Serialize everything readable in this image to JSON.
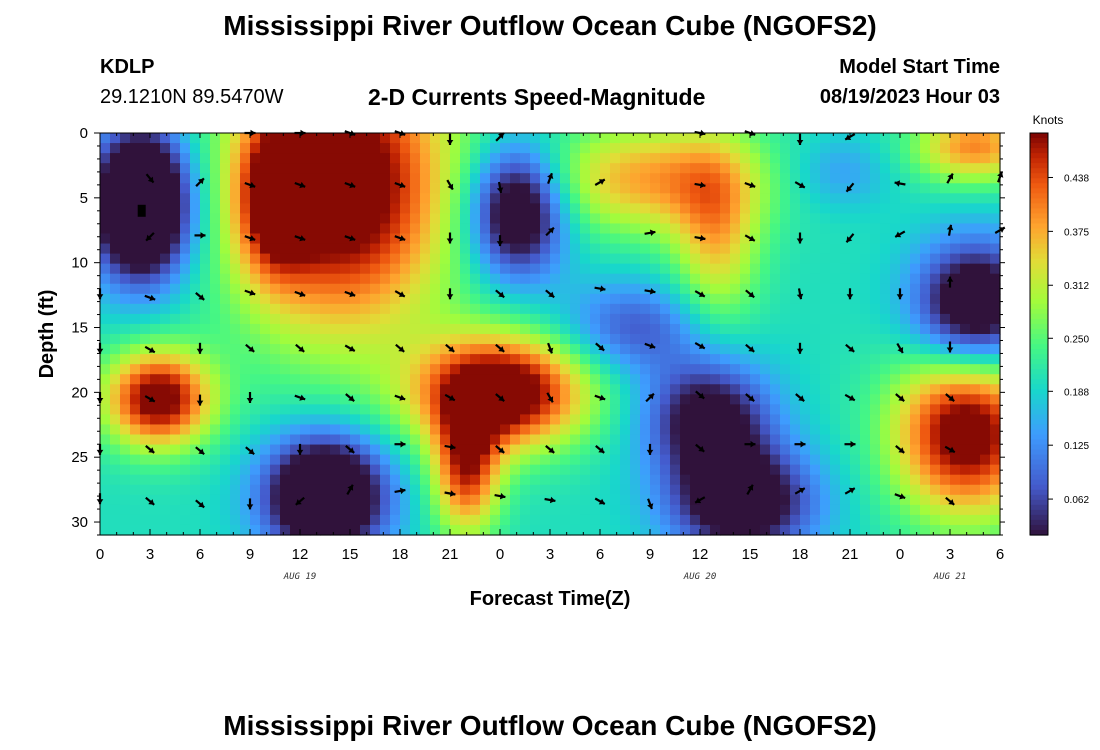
{
  "header": {
    "title": "Mississippi River Outflow Ocean Cube (NGOFS2)",
    "station": "KDLP",
    "coords": "29.1210N  89.5470W",
    "subtitle": "2-D Currents Speed-Magnitude",
    "model_label": "Model Start Time",
    "model_time": "08/19/2023 Hour 03"
  },
  "footer": {
    "title": "Mississippi River Outflow Ocean Cube (NGOFS2)"
  },
  "chart_data": {
    "type": "heatmap",
    "title": "2-D Currents Speed-Magnitude",
    "xlabel": "Forecast Time(Z)",
    "ylabel": "Depth (ft)",
    "x_range": [
      0,
      54
    ],
    "y_range": [
      0,
      31
    ],
    "x_tick_values": [
      0,
      3,
      6,
      9,
      12,
      15,
      18,
      21,
      24,
      27,
      30,
      33,
      36,
      39,
      42,
      45,
      48,
      51,
      54
    ],
    "x_tick_labels": [
      "0",
      "3",
      "6",
      "9",
      "12",
      "15",
      "18",
      "21",
      "0",
      "3",
      "6",
      "9",
      "12",
      "15",
      "18",
      "21",
      "0",
      "3",
      "6"
    ],
    "y_ticks": [
      0,
      5,
      10,
      15,
      20,
      25,
      30
    ],
    "date_labels": [
      {
        "label": "AUG 19",
        "hour": 12
      },
      {
        "label": "AUG 20",
        "hour": 36
      },
      {
        "label": "AUG 21",
        "hour": 51
      }
    ],
    "colorbar": {
      "label": "Knots",
      "range": [
        0.02,
        0.49
      ],
      "ticks": [
        0.438,
        0.375,
        0.312,
        0.25,
        0.188,
        0.125,
        0.062
      ],
      "tick_labels": [
        "0.438",
        "0.375",
        "0.312",
        "0.250",
        "0.188",
        "0.125",
        "0.062"
      ]
    },
    "speed_blobs": [
      {
        "x": 2.5,
        "y": 5.5,
        "sx": 2.0,
        "sy": 4.0,
        "a": -0.4
      },
      {
        "x": 14.5,
        "y": 4.0,
        "sx": 4.5,
        "sy": 8.0,
        "a": 0.35
      },
      {
        "x": 10.5,
        "y": 5.0,
        "sx": 1.5,
        "sy": 4.0,
        "a": 0.2
      },
      {
        "x": 3.5,
        "y": 20.5,
        "sx": 2.2,
        "sy": 2.6,
        "a": 0.32
      },
      {
        "x": 13.5,
        "y": 28.0,
        "sx": 2.5,
        "sy": 3.2,
        "a": -0.35
      },
      {
        "x": 24.0,
        "y": 20.0,
        "sx": 3.5,
        "sy": 3.0,
        "a": 0.36
      },
      {
        "x": 22.0,
        "y": 26.0,
        "sx": 1.4,
        "sy": 3.5,
        "a": 0.25
      },
      {
        "x": 25.0,
        "y": 6.0,
        "sx": 2.0,
        "sy": 3.5,
        "a": -0.28
      },
      {
        "x": 33.0,
        "y": 3.5,
        "sx": 4.5,
        "sy": 3.0,
        "a": 0.18
      },
      {
        "x": 37.0,
        "y": 8.0,
        "sx": 1.8,
        "sy": 5.0,
        "a": 0.15
      },
      {
        "x": 32.0,
        "y": 15.0,
        "sx": 3.0,
        "sy": 2.5,
        "a": -0.12
      },
      {
        "x": 36.5,
        "y": 22.0,
        "sx": 2.6,
        "sy": 3.2,
        "a": -0.22
      },
      {
        "x": 38.5,
        "y": 28.5,
        "sx": 3.0,
        "sy": 3.0,
        "a": -0.25
      },
      {
        "x": 52.0,
        "y": 23.0,
        "sx": 3.0,
        "sy": 4.5,
        "a": 0.33
      },
      {
        "x": 52.5,
        "y": 13.5,
        "sx": 2.5,
        "sy": 3.5,
        "a": -0.28
      },
      {
        "x": 52.5,
        "y": 1.0,
        "sx": 2.5,
        "sy": 2.0,
        "a": 0.2
      },
      {
        "x": 44.5,
        "y": 3.0,
        "sx": 2.0,
        "sy": 2.0,
        "a": -0.06
      }
    ],
    "vectors": [
      {
        "hour": 0,
        "depth": 12.4,
        "angle": 180
      },
      {
        "hour": 0,
        "depth": 16.6,
        "angle": 180
      },
      {
        "hour": 0,
        "depth": 20.4,
        "angle": 180
      },
      {
        "hour": 0,
        "depth": 24.4,
        "angle": 180
      },
      {
        "hour": 0,
        "depth": 28.2,
        "angle": 180
      },
      {
        "hour": 3,
        "depth": 3.5,
        "angle": 140
      },
      {
        "hour": 3,
        "depth": 8.0,
        "angle": 225
      },
      {
        "hour": 3,
        "depth": 12.7,
        "angle": 110
      },
      {
        "hour": 3,
        "depth": 16.7,
        "angle": 120
      },
      {
        "hour": 3,
        "depth": 20.5,
        "angle": 120
      },
      {
        "hour": 3,
        "depth": 24.4,
        "angle": 130
      },
      {
        "hour": 3,
        "depth": 28.4,
        "angle": 130
      },
      {
        "hour": 6,
        "depth": 3.8,
        "angle": 45
      },
      {
        "hour": 6,
        "depth": 7.9,
        "angle": 90
      },
      {
        "hour": 6,
        "depth": 12.6,
        "angle": 130
      },
      {
        "hour": 6,
        "depth": 16.6,
        "angle": 180
      },
      {
        "hour": 6,
        "depth": 20.6,
        "angle": 180
      },
      {
        "hour": 6,
        "depth": 24.5,
        "angle": 130
      },
      {
        "hour": 6,
        "depth": 28.6,
        "angle": 130
      },
      {
        "hour": 9,
        "depth": 0.0,
        "angle": 90
      },
      {
        "hour": 9,
        "depth": 4.0,
        "angle": 110
      },
      {
        "hour": 9,
        "depth": 8.1,
        "angle": 110
      },
      {
        "hour": 9,
        "depth": 12.3,
        "angle": 110
      },
      {
        "hour": 9,
        "depth": 16.6,
        "angle": 130
      },
      {
        "hour": 9,
        "depth": 20.4,
        "angle": 180
      },
      {
        "hour": 9,
        "depth": 24.5,
        "angle": 130
      },
      {
        "hour": 9,
        "depth": 28.6,
        "angle": 180
      },
      {
        "hour": 12,
        "depth": 0.0,
        "angle": 90
      },
      {
        "hour": 12,
        "depth": 4.0,
        "angle": 110
      },
      {
        "hour": 12,
        "depth": 8.1,
        "angle": 110
      },
      {
        "hour": 12,
        "depth": 12.4,
        "angle": 110
      },
      {
        "hour": 12,
        "depth": 16.6,
        "angle": 130
      },
      {
        "hour": 12,
        "depth": 20.4,
        "angle": 110
      },
      {
        "hour": 12,
        "depth": 24.4,
        "angle": 180
      },
      {
        "hour": 12,
        "depth": 28.4,
        "angle": 230
      },
      {
        "hour": 15,
        "depth": 0.0,
        "angle": 110
      },
      {
        "hour": 15,
        "depth": 4.0,
        "angle": 110
      },
      {
        "hour": 15,
        "depth": 8.1,
        "angle": 110
      },
      {
        "hour": 15,
        "depth": 12.4,
        "angle": 110
      },
      {
        "hour": 15,
        "depth": 16.6,
        "angle": 120
      },
      {
        "hour": 15,
        "depth": 20.4,
        "angle": 130
      },
      {
        "hour": 15,
        "depth": 24.4,
        "angle": 130
      },
      {
        "hour": 15,
        "depth": 27.5,
        "angle": 30
      },
      {
        "hour": 18,
        "depth": 0.0,
        "angle": 110
      },
      {
        "hour": 18,
        "depth": 4.0,
        "angle": 110
      },
      {
        "hour": 18,
        "depth": 8.1,
        "angle": 110
      },
      {
        "hour": 18,
        "depth": 12.4,
        "angle": 120
      },
      {
        "hour": 18,
        "depth": 16.6,
        "angle": 130
      },
      {
        "hour": 18,
        "depth": 20.4,
        "angle": 110
      },
      {
        "hour": 18,
        "depth": 24.0,
        "angle": 90
      },
      {
        "hour": 18,
        "depth": 27.6,
        "angle": 80
      },
      {
        "hour": 21,
        "depth": 0.5,
        "angle": 180
      },
      {
        "hour": 21,
        "depth": 4.0,
        "angle": 150
      },
      {
        "hour": 21,
        "depth": 8.1,
        "angle": 180
      },
      {
        "hour": 21,
        "depth": 12.4,
        "angle": 180
      },
      {
        "hour": 21,
        "depth": 16.6,
        "angle": 130
      },
      {
        "hour": 21,
        "depth": 20.4,
        "angle": 120
      },
      {
        "hour": 21,
        "depth": 24.2,
        "angle": 100
      },
      {
        "hour": 21,
        "depth": 27.8,
        "angle": 100
      },
      {
        "hour": 24,
        "depth": 0.3,
        "angle": 45
      },
      {
        "hour": 24,
        "depth": 4.2,
        "angle": 170
      },
      {
        "hour": 24,
        "depth": 8.3,
        "angle": 180
      },
      {
        "hour": 24,
        "depth": 12.4,
        "angle": 130
      },
      {
        "hour": 24,
        "depth": 16.6,
        "angle": 130
      },
      {
        "hour": 24,
        "depth": 20.4,
        "angle": 130
      },
      {
        "hour": 24,
        "depth": 24.4,
        "angle": 130
      },
      {
        "hour": 24,
        "depth": 28.0,
        "angle": 100
      },
      {
        "hour": 27,
        "depth": 3.5,
        "angle": 20
      },
      {
        "hour": 27,
        "depth": 7.6,
        "angle": 45
      },
      {
        "hour": 27,
        "depth": 12.4,
        "angle": 130
      },
      {
        "hour": 27,
        "depth": 16.6,
        "angle": 160
      },
      {
        "hour": 27,
        "depth": 20.4,
        "angle": 150
      },
      {
        "hour": 27,
        "depth": 24.4,
        "angle": 130
      },
      {
        "hour": 27,
        "depth": 28.3,
        "angle": 100
      },
      {
        "hour": 30,
        "depth": 3.8,
        "angle": 60
      },
      {
        "hour": 30,
        "depth": 12.0,
        "angle": 100
      },
      {
        "hour": 30,
        "depth": 16.5,
        "angle": 130
      },
      {
        "hour": 30,
        "depth": 20.4,
        "angle": 110
      },
      {
        "hour": 30,
        "depth": 24.4,
        "angle": 130
      },
      {
        "hour": 30,
        "depth": 28.4,
        "angle": 120
      },
      {
        "hour": 33,
        "depth": 7.7,
        "angle": 80
      },
      {
        "hour": 33,
        "depth": 12.2,
        "angle": 100
      },
      {
        "hour": 33,
        "depth": 16.4,
        "angle": 110
      },
      {
        "hour": 33,
        "depth": 20.4,
        "angle": 45
      },
      {
        "hour": 33,
        "depth": 24.4,
        "angle": 180
      },
      {
        "hour": 33,
        "depth": 28.6,
        "angle": 160
      },
      {
        "hour": 36,
        "depth": 0.0,
        "angle": 100
      },
      {
        "hour": 36,
        "depth": 4.0,
        "angle": 100
      },
      {
        "hour": 36,
        "depth": 8.1,
        "angle": 100
      },
      {
        "hour": 36,
        "depth": 12.4,
        "angle": 120
      },
      {
        "hour": 36,
        "depth": 16.4,
        "angle": 120
      },
      {
        "hour": 36,
        "depth": 20.2,
        "angle": 130
      },
      {
        "hour": 36,
        "depth": 24.3,
        "angle": 130
      },
      {
        "hour": 36,
        "depth": 28.3,
        "angle": 240
      },
      {
        "hour": 39,
        "depth": 0.0,
        "angle": 110
      },
      {
        "hour": 39,
        "depth": 4.0,
        "angle": 110
      },
      {
        "hour": 39,
        "depth": 8.1,
        "angle": 120
      },
      {
        "hour": 39,
        "depth": 12.4,
        "angle": 130
      },
      {
        "hour": 39,
        "depth": 16.6,
        "angle": 130
      },
      {
        "hour": 39,
        "depth": 20.4,
        "angle": 130
      },
      {
        "hour": 39,
        "depth": 24.0,
        "angle": 90
      },
      {
        "hour": 39,
        "depth": 27.5,
        "angle": 30
      },
      {
        "hour": 42,
        "depth": 0.5,
        "angle": 180
      },
      {
        "hour": 42,
        "depth": 4.0,
        "angle": 120
      },
      {
        "hour": 42,
        "depth": 8.1,
        "angle": 180
      },
      {
        "hour": 42,
        "depth": 12.4,
        "angle": 170
      },
      {
        "hour": 42,
        "depth": 16.6,
        "angle": 180
      },
      {
        "hour": 42,
        "depth": 20.4,
        "angle": 130
      },
      {
        "hour": 42,
        "depth": 24.0,
        "angle": 90
      },
      {
        "hour": 42,
        "depth": 27.6,
        "angle": 60
      },
      {
        "hour": 45,
        "depth": 0.3,
        "angle": 240
      },
      {
        "hour": 45,
        "depth": 4.2,
        "angle": 220
      },
      {
        "hour": 45,
        "depth": 8.1,
        "angle": 220
      },
      {
        "hour": 45,
        "depth": 12.4,
        "angle": 180
      },
      {
        "hour": 45,
        "depth": 16.6,
        "angle": 130
      },
      {
        "hour": 45,
        "depth": 20.4,
        "angle": 120
      },
      {
        "hour": 45,
        "depth": 24.0,
        "angle": 90
      },
      {
        "hour": 45,
        "depth": 27.6,
        "angle": 60
      },
      {
        "hour": 48,
        "depth": 3.9,
        "angle": 280
      },
      {
        "hour": 48,
        "depth": 7.8,
        "angle": 240
      },
      {
        "hour": 48,
        "depth": 12.4,
        "angle": 180
      },
      {
        "hour": 48,
        "depth": 16.6,
        "angle": 150
      },
      {
        "hour": 48,
        "depth": 20.4,
        "angle": 130
      },
      {
        "hour": 48,
        "depth": 24.4,
        "angle": 130
      },
      {
        "hour": 48,
        "depth": 28.0,
        "angle": 110
      },
      {
        "hour": 51,
        "depth": 3.5,
        "angle": 30
      },
      {
        "hour": 51,
        "depth": 7.5,
        "angle": 10
      },
      {
        "hour": 51,
        "depth": 11.5,
        "angle": 0
      },
      {
        "hour": 51,
        "depth": 16.5,
        "angle": 180
      },
      {
        "hour": 51,
        "depth": 20.4,
        "angle": 130
      },
      {
        "hour": 51,
        "depth": 24.4,
        "angle": 120
      },
      {
        "hour": 51,
        "depth": 28.4,
        "angle": 130
      },
      {
        "hour": 54,
        "depth": 3.4,
        "angle": 20
      },
      {
        "hour": 54,
        "depth": 7.5,
        "angle": 60
      }
    ],
    "markers": [
      {
        "hour": 2.5,
        "depth": 6.0
      }
    ]
  }
}
